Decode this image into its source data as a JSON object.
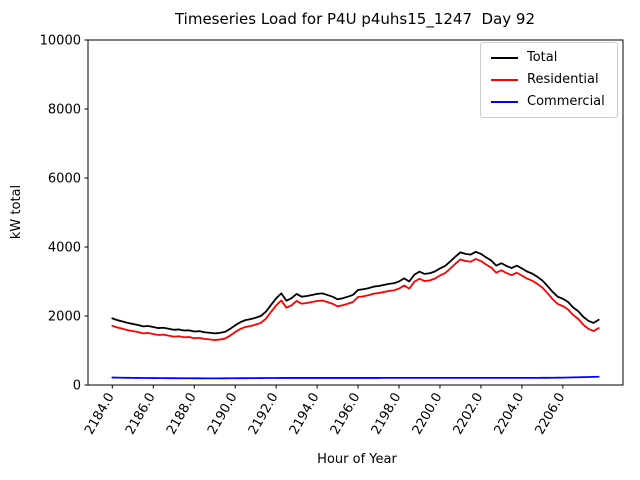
{
  "figure": {
    "background": "#ffffff",
    "spine_color": "#000000",
    "legend_border_color": "#cccccc"
  },
  "chart_data": {
    "type": "line",
    "title": "Timeseries Load for P4U p4uhs15_1247  Day 92",
    "xlabel": "Hour of Year",
    "ylabel": "kW total",
    "xlim": [
      2182.8125,
      2208.9375
    ],
    "ylim": [
      0,
      10000
    ],
    "grid": false,
    "legend_position": "upper right",
    "x_ticks": {
      "values": [
        2184,
        2186,
        2188,
        2190,
        2192,
        2194,
        2196,
        2198,
        2200,
        2202,
        2204,
        2206
      ],
      "labels": [
        "2184.0",
        "2186.0",
        "2188.0",
        "2190.0",
        "2192.0",
        "2194.0",
        "2196.0",
        "2198.0",
        "2200.0",
        "2202.0",
        "2204.0",
        "2206.0"
      ],
      "rotation_deg": 60
    },
    "y_ticks": {
      "values": [
        0,
        2000,
        4000,
        6000,
        8000,
        10000
      ],
      "labels": [
        "0",
        "2000",
        "4000",
        "6000",
        "8000",
        "10000"
      ]
    },
    "x_start": 2184.0,
    "x_step": 0.25,
    "n_points": 96,
    "series": [
      {
        "name": "Total",
        "color": "#000000",
        "values": [
          1930,
          1880,
          1840,
          1800,
          1770,
          1740,
          1700,
          1710,
          1680,
          1650,
          1660,
          1630,
          1600,
          1610,
          1580,
          1585,
          1550,
          1560,
          1530,
          1515,
          1495,
          1510,
          1540,
          1625,
          1730,
          1820,
          1880,
          1910,
          1950,
          2000,
          2125,
          2320,
          2510,
          2655,
          2445,
          2515,
          2640,
          2560,
          2580,
          2610,
          2640,
          2655,
          2610,
          2560,
          2485,
          2515,
          2560,
          2610,
          2755,
          2775,
          2805,
          2850,
          2870,
          2900,
          2930,
          2950,
          3000,
          3090,
          3000,
          3200,
          3285,
          3220,
          3240,
          3290,
          3380,
          3450,
          3580,
          3720,
          3845,
          3800,
          3780,
          3860,
          3800,
          3700,
          3610,
          3460,
          3530,
          3450,
          3390,
          3460,
          3380,
          3290,
          3230,
          3140,
          3030,
          2870,
          2700,
          2560,
          2500,
          2410,
          2250,
          2140,
          1975,
          1860,
          1800,
          1890
        ]
      },
      {
        "name": "Residential",
        "color": "#ff0000",
        "values": [
          1715,
          1667,
          1629,
          1591,
          1563,
          1535,
          1497,
          1508,
          1479,
          1450,
          1461,
          1432,
          1403,
          1414,
          1385,
          1390,
          1356,
          1366,
          1337,
          1322,
          1302,
          1317,
          1346,
          1430,
          1534,
          1623,
          1682,
          1711,
          1750,
          1799,
          1923,
          2117,
          2307,
          2451,
          2241,
          2311,
          2436,
          2356,
          2376,
          2405,
          2435,
          2450,
          2405,
          2355,
          2281,
          2311,
          2356,
          2406,
          2550,
          2570,
          2600,
          2645,
          2665,
          2694,
          2724,
          2744,
          2794,
          2884,
          2794,
          2994,
          3079,
          3013,
          3033,
          3083,
          3173,
          3243,
          3373,
          3513,
          3638,
          3593,
          3573,
          3653,
          3593,
          3493,
          3404,
          3254,
          3324,
          3244,
          3184,
          3254,
          3174,
          3084,
          3024,
          2933,
          2822,
          2661,
          2490,
          2348,
          2286,
          2193,
          2030,
          1916,
          1747,
          1628,
          1564,
          1650
        ]
      },
      {
        "name": "Commercial",
        "color": "#0000ff",
        "values": [
          215,
          213,
          211,
          209,
          207,
          205,
          203,
          202,
          201,
          200,
          199,
          198,
          197,
          196,
          195,
          195,
          194,
          194,
          193,
          193,
          193,
          193,
          194,
          195,
          196,
          197,
          198,
          199,
          200,
          201,
          202,
          203,
          203,
          204,
          204,
          204,
          204,
          204,
          204,
          205,
          205,
          205,
          205,
          205,
          204,
          204,
          204,
          204,
          205,
          205,
          205,
          205,
          205,
          206,
          206,
          206,
          206,
          206,
          206,
          206,
          206,
          207,
          207,
          207,
          207,
          207,
          207,
          207,
          207,
          207,
          207,
          207,
          207,
          207,
          206,
          206,
          206,
          206,
          206,
          206,
          206,
          206,
          206,
          207,
          208,
          209,
          210,
          212,
          214,
          217,
          220,
          224,
          228,
          232,
          236,
          240
        ]
      }
    ]
  }
}
